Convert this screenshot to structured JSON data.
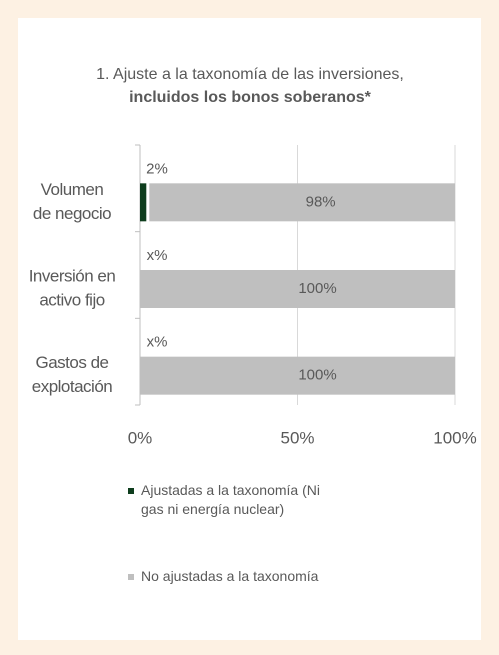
{
  "chart_data": {
    "type": "stacked-barh",
    "title": "1. Ajuste a la taxonomía de las inversiones,",
    "subtitle": "incluidos los bonos soberanos*",
    "categories": [
      [
        "Volumen",
        "de negocio"
      ],
      [
        "Inversión en",
        "activo fijo"
      ],
      [
        "Gastos de",
        "explotación"
      ]
    ],
    "series": [
      {
        "name": "Ajustadas a la taxonomía (Ni gas ni energía nuclear)",
        "color": "#0e3d1d",
        "values": [
          2,
          null,
          null
        ],
        "value_labels": [
          "2%",
          "x%",
          "x%"
        ]
      },
      {
        "name": "No ajustadas a la taxonomía",
        "color": "#bfbfbf",
        "values": [
          98,
          100,
          100
        ],
        "value_labels": [
          "98%",
          "100%",
          "100%"
        ]
      }
    ],
    "xlim": [
      0,
      100
    ],
    "xticks": [
      {
        "value": 0,
        "label": "0%"
      },
      {
        "value": 50,
        "label": "50%"
      },
      {
        "value": 100,
        "label": "100%"
      }
    ],
    "grid": true
  }
}
